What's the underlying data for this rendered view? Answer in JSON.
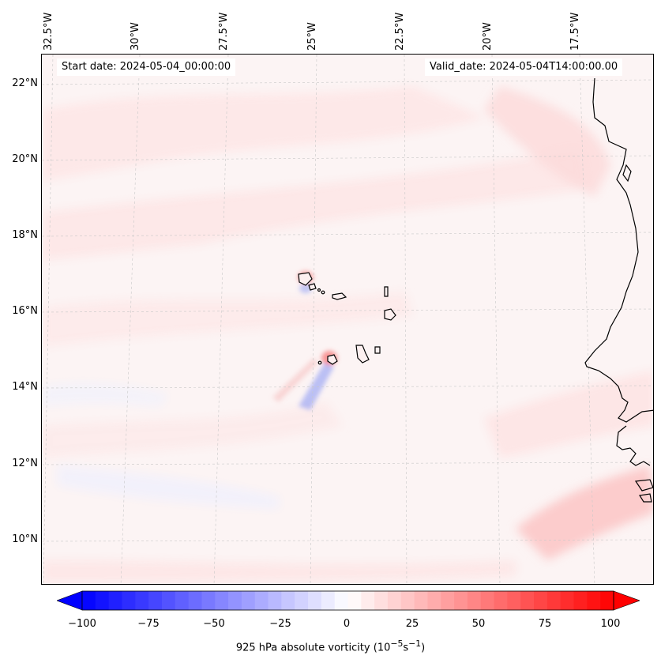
{
  "map": {
    "start_date": "Start date: 2024-05-04_00:00:00",
    "valid_date": "Valid_date: 2024-05-04T14:00:00.00",
    "lon_labels": [
      "32.5°W",
      "30°W",
      "27.5°W",
      "25°W",
      "22.5°W",
      "20°W",
      "17.5°W"
    ],
    "lat_labels": [
      "22°N",
      "20°N",
      "18°N",
      "16°N",
      "14°N",
      "12°N",
      "10°N"
    ],
    "background_color": "#fdf6f6",
    "coast_color": "#000000"
  },
  "colorbar": {
    "ticks": [
      "−100",
      "−75",
      "−50",
      "−25",
      "0",
      "25",
      "50",
      "75",
      "100"
    ],
    "range": [
      -100,
      100
    ],
    "colors": {
      "negative": "#0000ff",
      "neutral": "#ffffff",
      "positive": "#ff0000"
    }
  }
}
